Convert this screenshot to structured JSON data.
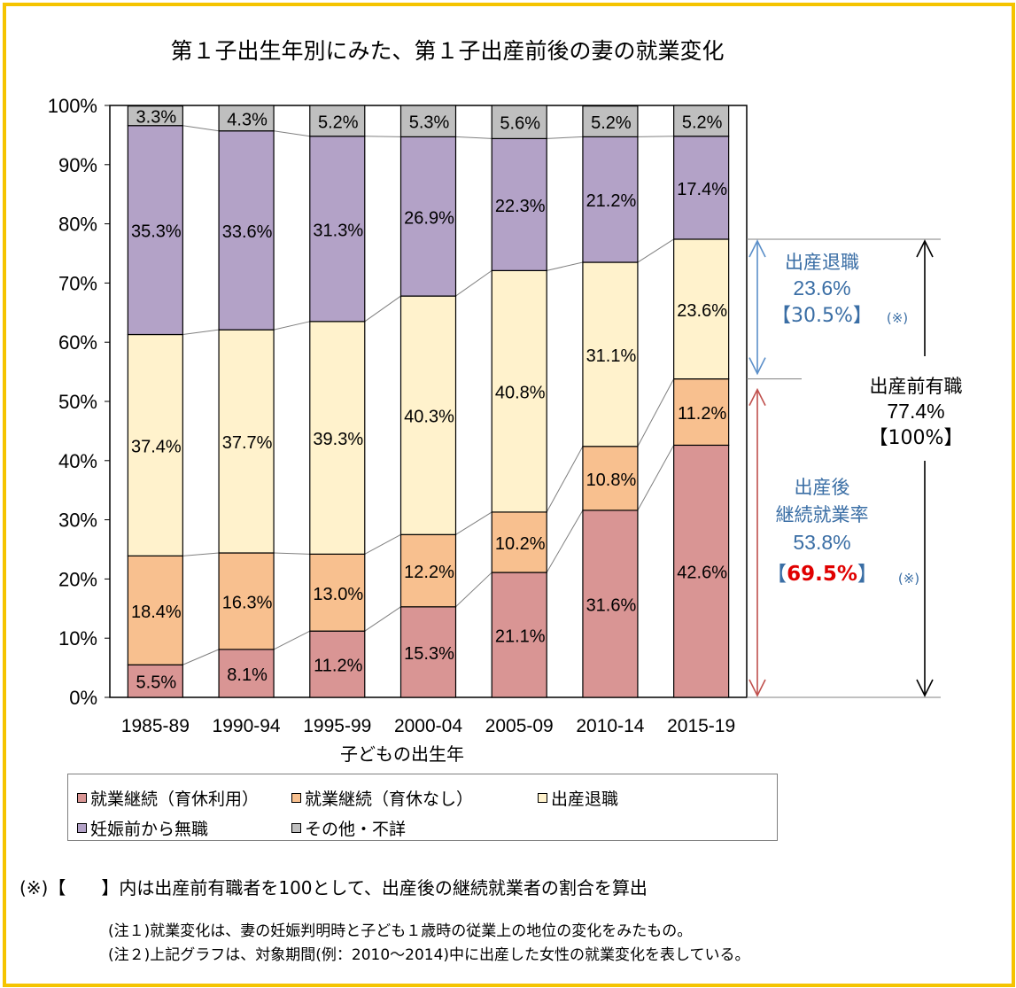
{
  "chart_data": {
    "type": "bar",
    "stacked": true,
    "title": "第１子出生年別にみた、第１子出産前後の妻の就業変化",
    "xlabel": "子どもの出生年",
    "ylabel": "",
    "ylim": [
      0,
      100
    ],
    "yticks": [
      "0%",
      "10%",
      "20%",
      "30%",
      "40%",
      "50%",
      "60%",
      "70%",
      "80%",
      "90%",
      "100%"
    ],
    "categories": [
      "1985-89",
      "1990-94",
      "1995-99",
      "2000-04",
      "2005-09",
      "2010-14",
      "2015-19"
    ],
    "series": [
      {
        "name": "就業継続（育休利用）",
        "color": "#d99594",
        "values": [
          5.5,
          8.1,
          11.2,
          15.3,
          21.1,
          31.6,
          42.6
        ]
      },
      {
        "name": "就業継続（育休なし）",
        "color": "#f8c08f",
        "values": [
          18.4,
          16.3,
          13.0,
          12.2,
          10.2,
          10.8,
          11.2
        ]
      },
      {
        "name": "出産退職",
        "color": "#fff2cc",
        "values": [
          37.4,
          37.7,
          39.3,
          40.3,
          40.8,
          31.1,
          23.6
        ]
      },
      {
        "name": "妊娠前から無職",
        "color": "#b3a2c7",
        "values": [
          35.3,
          33.6,
          31.3,
          26.9,
          22.3,
          21.2,
          17.4
        ]
      },
      {
        "name": "その他・不詳",
        "color": "#bfbfbf",
        "values": [
          3.3,
          4.3,
          5.2,
          5.3,
          5.6,
          5.2,
          5.2
        ]
      }
    ],
    "data_labels": [
      [
        "5.5%",
        "8.1%",
        "11.2%",
        "15.3%",
        "21.1%",
        "31.6%",
        "42.6%"
      ],
      [
        "18.4%",
        "16.3%",
        "13.0%",
        "12.2%",
        "10.2%",
        "10.8%",
        "11.2%"
      ],
      [
        "37.4%",
        "37.7%",
        "39.3%",
        "40.3%",
        "40.8%",
        "31.1%",
        "23.6%"
      ],
      [
        "35.3%",
        "33.6%",
        "31.3%",
        "26.9%",
        "22.3%",
        "21.2%",
        "17.4%"
      ],
      [
        "3.3%",
        "4.3%",
        "5.2%",
        "5.3%",
        "5.6%",
        "5.2%",
        "5.2%"
      ]
    ],
    "grid": false,
    "legend_position": "bottom"
  },
  "annotations": {
    "retire": {
      "label": "出産退職",
      "value": "23.6%",
      "bracket": "【30.5%】",
      "mark": "(※)",
      "color": "#3a6ea5"
    },
    "prebirth": {
      "label": "出産前有職",
      "value": "77.4%",
      "bracket": "【100%】"
    },
    "continue": {
      "line1": "出産後",
      "line2": "継続就業率",
      "value": "53.8%",
      "bracket_open": "【",
      "bracket_value": "69.5%",
      "bracket_close": "】",
      "mark": "(※)",
      "color": "#3a6ea5",
      "highlight_color": "#e00000"
    },
    "arrow_colors": {
      "retire": "#5b8fc9",
      "continue": "#c0504d",
      "prebirth": "#000000"
    }
  },
  "notes": {
    "calc": "(※)【　　】内は出産前有職者を100として、出産後の継続就業者の割合を算出",
    "note1": "(注１)就業変化は、妻の妊娠判明時と子ども１歳時の従業上の地位の変化をみたもの。",
    "note2": "(注２)上記グラフは、対象期間(例：2010～2014)中に出産した女性の就業変化を表している。"
  },
  "colors": {
    "frame": "#f5c400"
  }
}
